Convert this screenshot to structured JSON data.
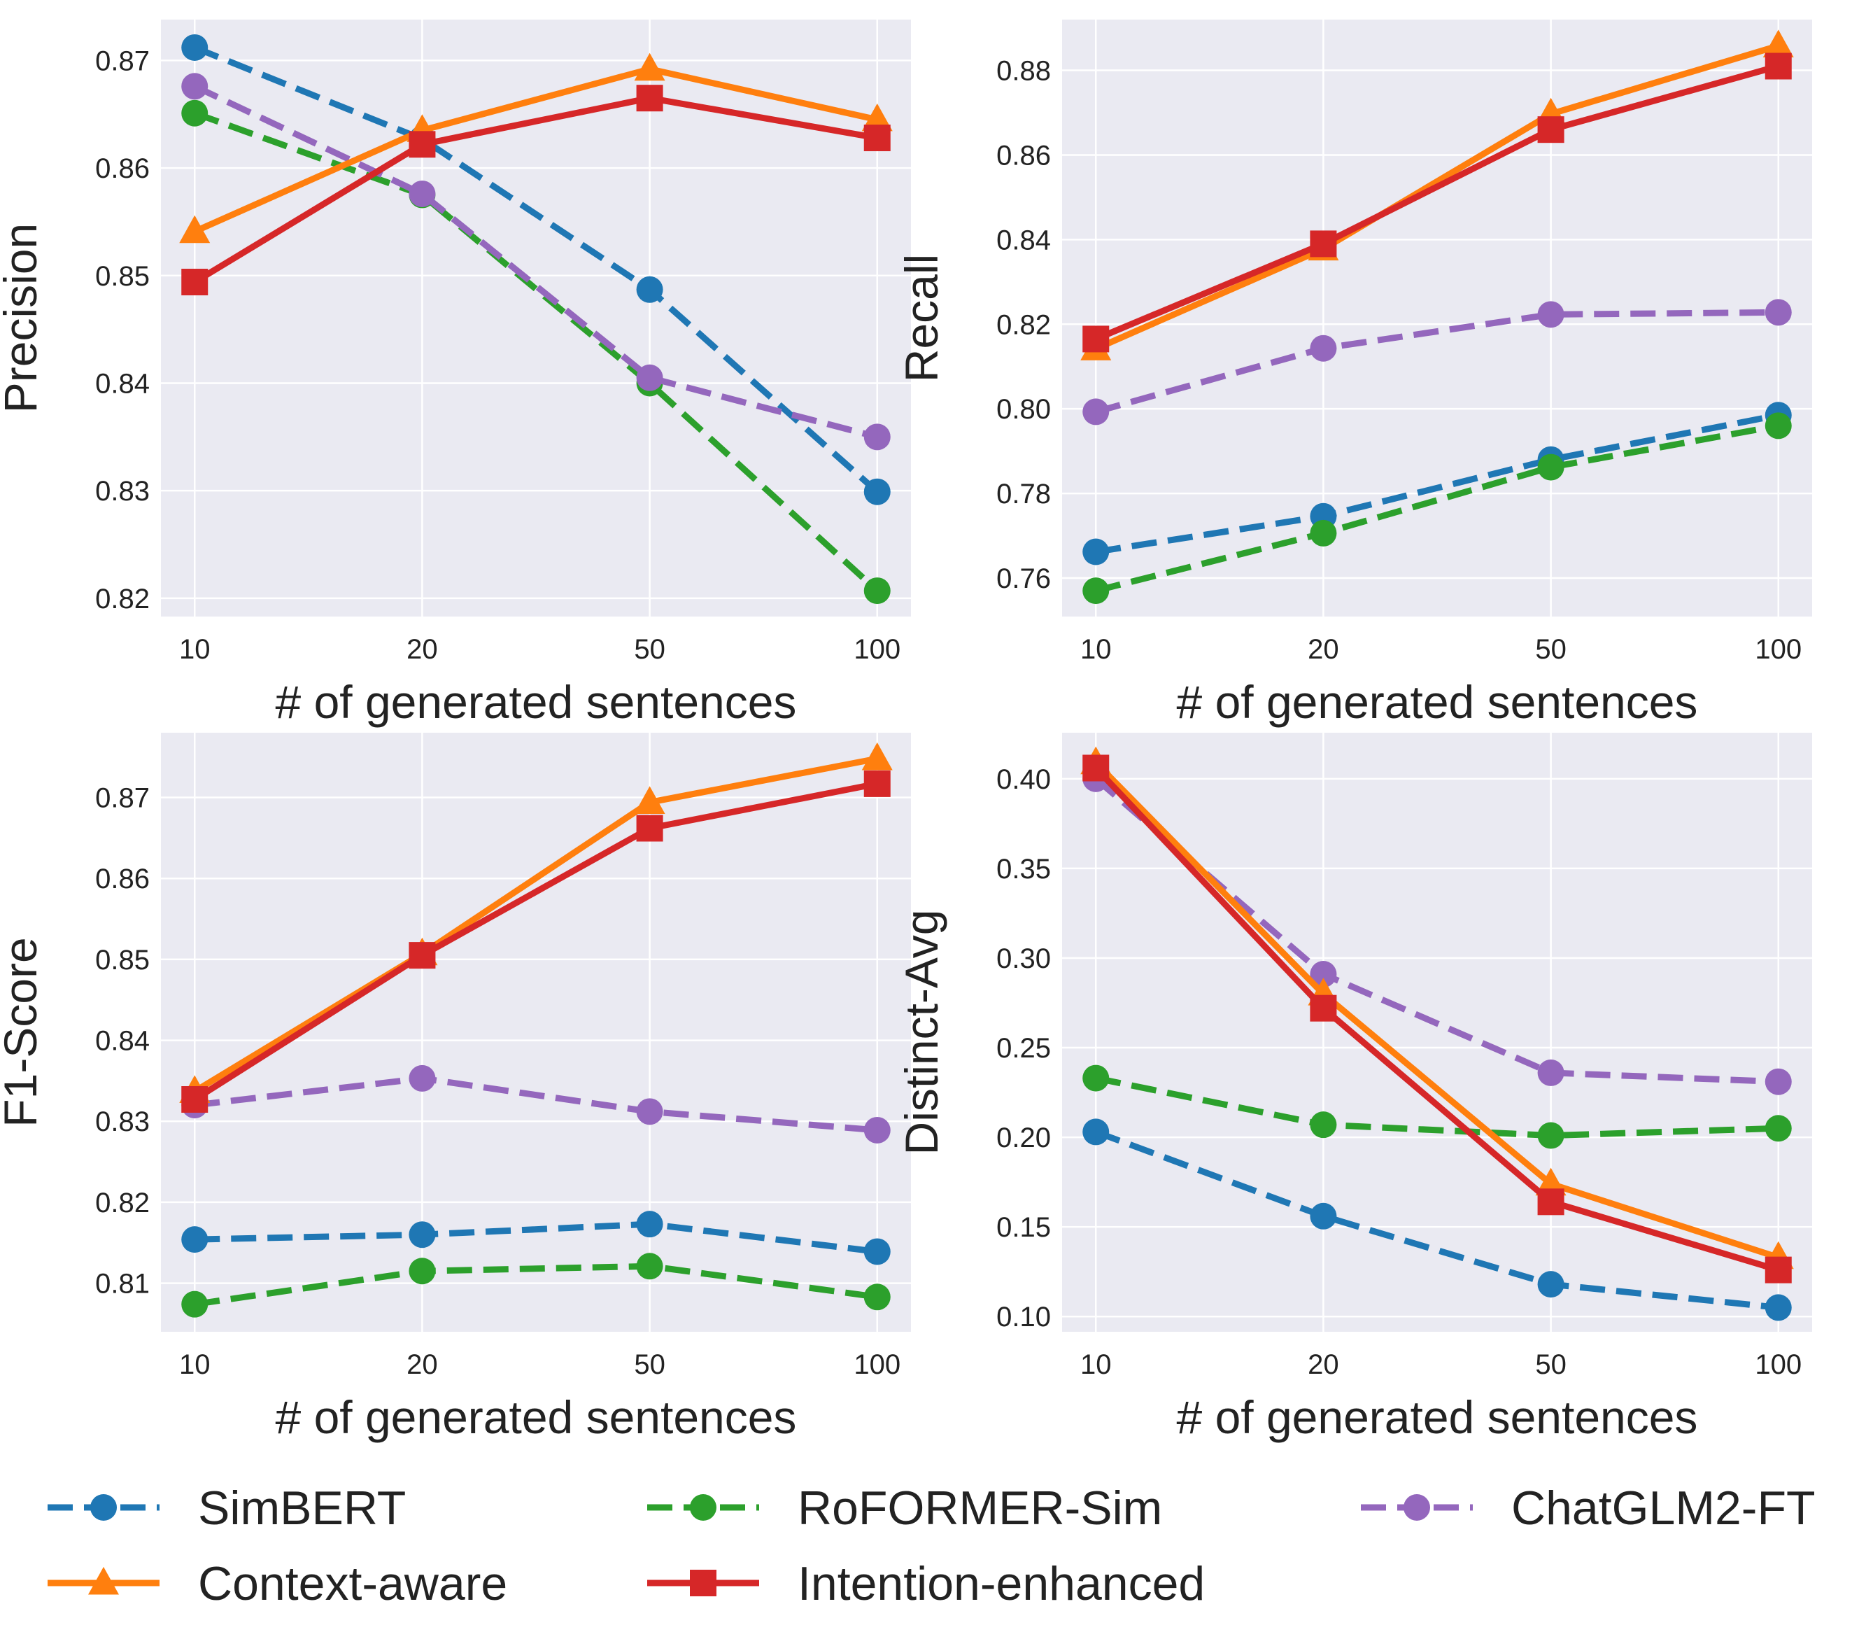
{
  "chart_data": [
    {
      "type": "line",
      "id": "precision",
      "categories": [
        "10",
        "20",
        "50",
        "100"
      ],
      "xlabel": "# of generated sentences",
      "ylabel": "Precision",
      "ylim": [
        0.8183,
        0.8738
      ],
      "yticks": [
        0.82,
        0.83,
        0.84,
        0.85,
        0.86,
        0.87
      ],
      "ytick_labels": [
        "0.82",
        "0.83",
        "0.84",
        "0.85",
        "0.86",
        "0.87"
      ],
      "grid": true,
      "series": [
        {
          "name": "SimBERT",
          "values": [
            0.8712,
            0.8627,
            0.8487,
            0.8299
          ]
        },
        {
          "name": "RoFORMER-Sim",
          "values": [
            0.8651,
            0.8575,
            0.84,
            0.8207
          ]
        },
        {
          "name": "ChatGLM2-FT",
          "values": [
            0.8676,
            0.8576,
            0.8405,
            0.835
          ]
        },
        {
          "name": "Context-aware",
          "values": [
            0.8541,
            0.8635,
            0.8692,
            0.8645
          ]
        },
        {
          "name": "Intention-enhanced",
          "values": [
            0.8494,
            0.8622,
            0.8665,
            0.8628
          ]
        }
      ]
    },
    {
      "type": "line",
      "id": "recall",
      "categories": [
        "10",
        "20",
        "50",
        "100"
      ],
      "xlabel": "# of generated sentences",
      "ylabel": "Recall",
      "ylim": [
        0.7509,
        0.892
      ],
      "yticks": [
        0.76,
        0.78,
        0.8,
        0.82,
        0.84,
        0.86,
        0.88
      ],
      "ytick_labels": [
        "0.76",
        "0.78",
        "0.80",
        "0.82",
        "0.84",
        "0.86",
        "0.88"
      ],
      "grid": true,
      "series": [
        {
          "name": "SimBERT",
          "values": [
            0.7662,
            0.7746,
            0.788,
            0.7985
          ]
        },
        {
          "name": "RoFORMER-Sim",
          "values": [
            0.757,
            0.7706,
            0.7862,
            0.796
          ]
        },
        {
          "name": "ChatGLM2-FT",
          "values": [
            0.7993,
            0.8143,
            0.8223,
            0.8228
          ]
        },
        {
          "name": "Context-aware",
          "values": [
            0.8142,
            0.8378,
            0.8697,
            0.8858
          ]
        },
        {
          "name": "Intention-enhanced",
          "values": [
            0.8165,
            0.839,
            0.866,
            0.881
          ]
        }
      ]
    },
    {
      "type": "line",
      "id": "f1",
      "categories": [
        "10",
        "20",
        "50",
        "100"
      ],
      "xlabel": "# of generated sentences",
      "ylabel": "F1-Score",
      "ylim": [
        0.804,
        0.878
      ],
      "yticks": [
        0.81,
        0.82,
        0.83,
        0.84,
        0.85,
        0.86,
        0.87
      ],
      "ytick_labels": [
        "0.81",
        "0.82",
        "0.83",
        "0.84",
        "0.85",
        "0.86",
        "0.87"
      ],
      "grid": true,
      "series": [
        {
          "name": "SimBERT",
          "values": [
            0.8154,
            0.816,
            0.8173,
            0.8139
          ]
        },
        {
          "name": "RoFORMER-Sim",
          "values": [
            0.8074,
            0.8115,
            0.8121,
            0.8083
          ]
        },
        {
          "name": "ChatGLM2-FT",
          "values": [
            0.832,
            0.8353,
            0.8312,
            0.8289
          ]
        },
        {
          "name": "Context-aware",
          "values": [
            0.8337,
            0.8507,
            0.8694,
            0.8748
          ]
        },
        {
          "name": "Intention-enhanced",
          "values": [
            0.8327,
            0.8505,
            0.8662,
            0.8717
          ]
        }
      ]
    },
    {
      "type": "line",
      "id": "distinct",
      "categories": [
        "10",
        "20",
        "50",
        "100"
      ],
      "xlabel": "# of generated sentences",
      "ylabel": "Distinct-Avg",
      "ylim": [
        0.0915,
        0.4257
      ],
      "yticks": [
        0.1,
        0.15,
        0.2,
        0.25,
        0.3,
        0.35,
        0.4
      ],
      "ytick_labels": [
        "0.10",
        "0.15",
        "0.20",
        "0.25",
        "0.30",
        "0.35",
        "0.40"
      ],
      "grid": true,
      "series": [
        {
          "name": "SimBERT",
          "values": [
            0.203,
            0.156,
            0.118,
            0.105
          ]
        },
        {
          "name": "RoFORMER-Sim",
          "values": [
            0.233,
            0.207,
            0.201,
            0.205
          ]
        },
        {
          "name": "ChatGLM2-FT",
          "values": [
            0.4,
            0.291,
            0.236,
            0.231
          ]
        },
        {
          "name": "Context-aware",
          "values": [
            0.409,
            0.28,
            0.174,
            0.133
          ]
        },
        {
          "name": "Intention-enhanced",
          "values": [
            0.406,
            0.272,
            0.164,
            0.126
          ]
        }
      ]
    }
  ],
  "legend": {
    "placement": "bottom",
    "entries": [
      {
        "label": "SimBERT",
        "color": "#1f77b4",
        "marker": "circle",
        "dashed": true
      },
      {
        "label": "RoFORMER-Sim",
        "color": "#2ca02c",
        "marker": "circle",
        "dashed": true
      },
      {
        "label": "ChatGLM2-FT",
        "color": "#9467bd",
        "marker": "circle",
        "dashed": true
      },
      {
        "label": "Context-aware",
        "color": "#ff7f0e",
        "marker": "triangle",
        "dashed": false
      },
      {
        "label": "Intention-enhanced",
        "color": "#d62728",
        "marker": "square",
        "dashed": false
      }
    ]
  },
  "colors": {
    "panel_background": "#eaeaf2",
    "grid": "#ffffff",
    "SimBERT": "#1f77b4",
    "RoFORMER-Sim": "#2ca02c",
    "ChatGLM2-FT": "#9467bd",
    "Context-aware": "#ff7f0e",
    "Intention-enhanced": "#d62728"
  }
}
